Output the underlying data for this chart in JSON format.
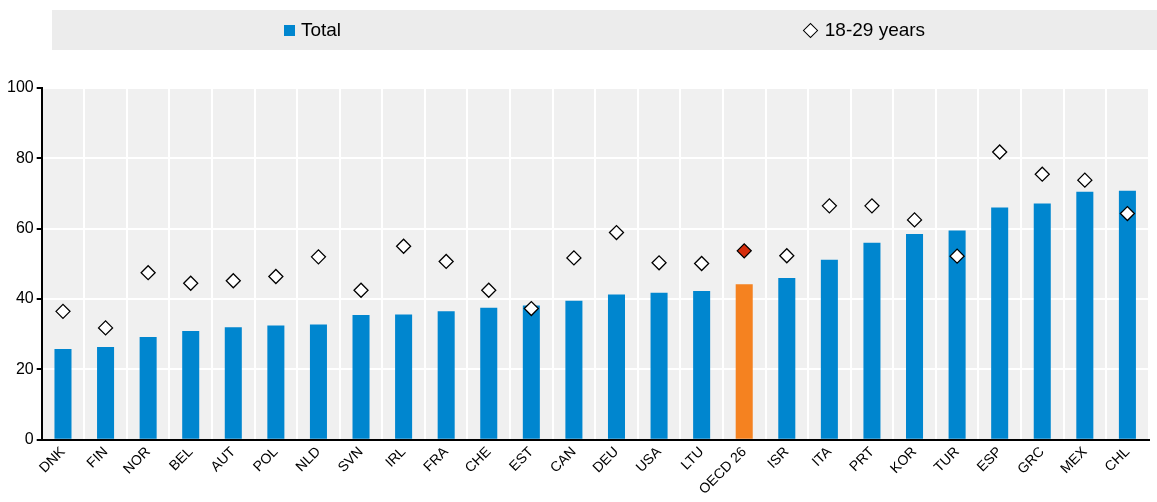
{
  "chart_data": {
    "type": "bar",
    "categories": [
      "DNK",
      "FIN",
      "NOR",
      "BEL",
      "AUT",
      "POL",
      "NLD",
      "SVN",
      "IRL",
      "FRA",
      "CHE",
      "EST",
      "CAN",
      "DEU",
      "USA",
      "LTU",
      "OECD 26",
      "ISR",
      "ITA",
      "PRT",
      "KOR",
      "TUR",
      "ESP",
      "GRC",
      "MEX",
      "CHL"
    ],
    "series": [
      {
        "name": "Total",
        "color": "#0086cf",
        "colors": [
          "#0086cf",
          "#0086cf",
          "#0086cf",
          "#0086cf",
          "#0086cf",
          "#0086cf",
          "#0086cf",
          "#0086cf",
          "#0086cf",
          "#0086cf",
          "#0086cf",
          "#0086cf",
          "#0086cf",
          "#0086cf",
          "#0086cf",
          "#0086cf",
          "#f58220",
          "#0086cf",
          "#0086cf",
          "#0086cf",
          "#0086cf",
          "#0086cf",
          "#0086cf",
          "#0086cf",
          "#0086cf",
          "#0086cf"
        ],
        "values": [
          25.8,
          26.4,
          29.2,
          30.9,
          32,
          32.5,
          32.8,
          35.5,
          35.6,
          36.5,
          37.5,
          38.2,
          39.5,
          41.3,
          41.8,
          42.3,
          44.2,
          46,
          51.2,
          56,
          58.5,
          59.5,
          66,
          67.2,
          70.5,
          70.8
        ]
      },
      {
        "name": "18-29 years",
        "type": "scatter",
        "marker": "diamond",
        "x": [
          "DNK",
          "FIN",
          "NOR",
          "BEL",
          "AUT",
          "POL",
          "NLD",
          "SVN",
          "IRL",
          "FRA",
          "CHE",
          "EST",
          "CAN",
          "DEU",
          "USA",
          "LTU",
          "OECD 26",
          "ISR",
          "ITA",
          "PRT",
          "KOR",
          "TUR",
          "ESP",
          "GRC",
          "MEX",
          "CHL"
        ],
        "color": "#ffffff",
        "colors": [
          "#ffffff",
          "#ffffff",
          "#ffffff",
          "#ffffff",
          "#ffffff",
          "#ffffff",
          "#ffffff",
          "#ffffff",
          "#ffffff",
          "#ffffff",
          "#ffffff",
          "#ffffff",
          "#ffffff",
          "#ffffff",
          "#ffffff",
          "#ffffff",
          "#d62d0c",
          "#ffffff",
          "#ffffff",
          "#ffffff",
          "#ffffff",
          "#ffffff",
          "#ffffff",
          "#ffffff",
          "#ffffff",
          "#ffffff"
        ],
        "values": [
          36.5,
          31.8,
          47.5,
          44.5,
          45.2,
          46.4,
          52,
          42.5,
          55,
          50.7,
          42.5,
          37.3,
          51.7,
          58.9,
          50.3,
          50.1,
          53.7,
          52.3,
          66.5,
          66.5,
          62.5,
          52.2,
          81.8,
          75.5,
          73.8,
          64.3
        ]
      }
    ],
    "ylim": [
      0,
      100
    ],
    "yticks": [
      0,
      20,
      40,
      60,
      80,
      100
    ],
    "grid": true,
    "legend": "top"
  }
}
